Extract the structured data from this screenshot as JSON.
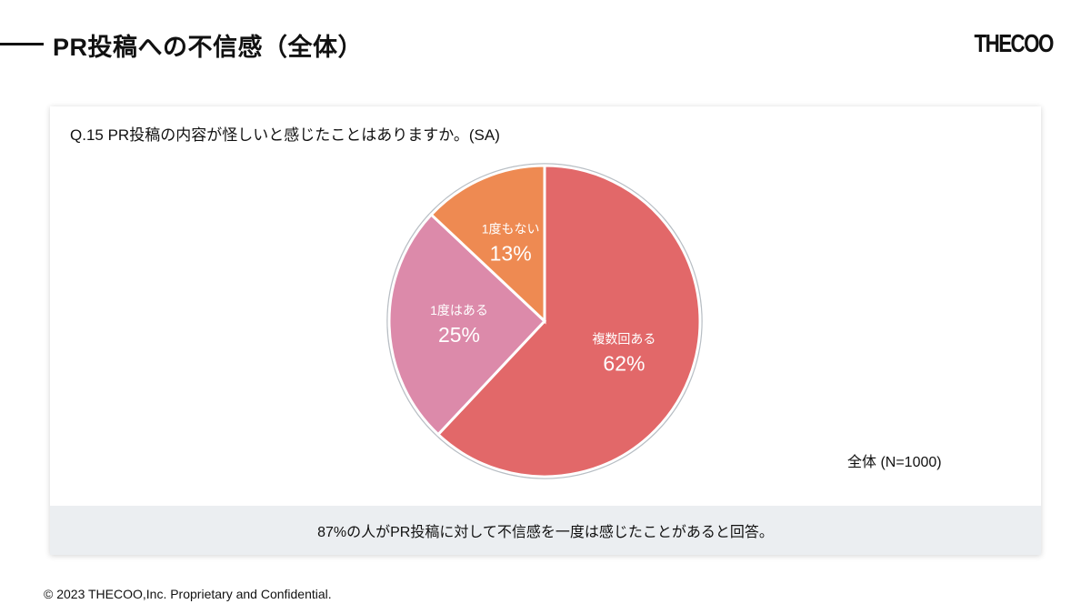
{
  "header": {
    "title": "PR投稿への不信感（全体）",
    "logo": "THECOO"
  },
  "question": "Q.15 PR投稿の内容が怪しいと感じたことはありますか。(SA)",
  "sample": "全体 (N=1000)",
  "summary": "87%の人がPR投稿に対して不信感を一度は感じたことがあると回答。",
  "footer": "© 2023 THECOO,Inc. Proprietary and Confidential.",
  "chart_data": {
    "type": "pie",
    "start": "top, clockwise",
    "slices": [
      {
        "label": "複数回ある",
        "value": 62,
        "display": "62%",
        "color": "#e26869"
      },
      {
        "label": "1度はある",
        "value": 25,
        "display": "25%",
        "color": "#dc8aaa"
      },
      {
        "label": "1度もない",
        "value": 13,
        "display": "13%",
        "color": "#ee8a52"
      }
    ]
  }
}
